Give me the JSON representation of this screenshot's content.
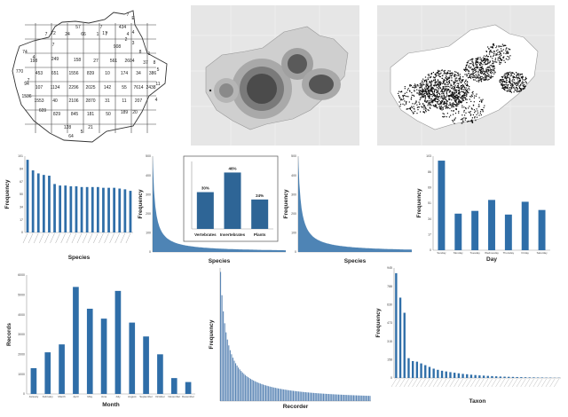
{
  "colors": {
    "bar": "#2f6ea8",
    "inset_bar": "#2e6596",
    "map_line": "#777777",
    "density_dark": "#3c3c3c"
  },
  "grid_map": {
    "cells": [
      "7",
      "E",
      "72",
      "17",
      "4",
      "434",
      "4",
      "74",
      "908",
      "7",
      "24",
      "66",
      "1",
      "7",
      "2",
      "57",
      "7",
      "3",
      "7",
      "8",
      "1",
      "8",
      "5",
      "4",
      "198",
      "249",
      "158",
      "27",
      "561",
      "2604",
      "37",
      "770",
      "453",
      "651",
      "1556",
      "839",
      "10",
      "174",
      "34",
      "386",
      "7",
      "94",
      "107",
      "1134",
      "2296",
      "2025",
      "142",
      "55",
      "7614",
      "2438",
      "11",
      "1536",
      "1553",
      "40",
      "2106",
      "2870",
      "31",
      "11",
      "207",
      "4",
      "609",
      "829",
      "845",
      "181",
      "50",
      "189",
      "20",
      "128",
      "21",
      "64",
      "5"
    ]
  },
  "chart_data": [
    {
      "type": "bar",
      "title": "",
      "xlabel": "Species",
      "ylabel": "Frequency",
      "values": [
        96,
        82,
        78,
        76,
        75,
        64,
        62,
        62,
        61,
        61,
        60,
        60,
        60,
        60,
        59,
        59,
        59,
        58,
        57,
        55
      ]
    },
    {
      "type": "area",
      "title": "",
      "xlabel": "Species",
      "ylabel": "Frequency",
      "series_shape": "long-tail"
    },
    {
      "type": "bar",
      "title": "",
      "xlabel": "",
      "ylabel": "",
      "categories": [
        "Vertebrates",
        "Invertebrates",
        "Plants"
      ],
      "values": [
        30,
        46,
        24
      ],
      "data_labels": [
        "30%",
        "46%",
        "24%"
      ]
    },
    {
      "type": "area",
      "title": "",
      "xlabel": "Species",
      "ylabel": "Frequency",
      "series_shape": "long-tail"
    },
    {
      "type": "bar",
      "title": "",
      "xlabel": "Day",
      "ylabel": "Frequency",
      "categories": [
        "Sunday",
        "Monday",
        "Tuesday",
        "Wednesday",
        "Thursday",
        "Friday",
        "Saturday"
      ],
      "values": [
        98,
        40,
        43,
        55,
        39,
        53,
        44
      ]
    },
    {
      "type": "bar",
      "title": "",
      "xlabel": "Month",
      "ylabel": "Records",
      "categories": [
        "January",
        "February",
        "March",
        "April",
        "May",
        "June",
        "July",
        "August",
        "September",
        "October",
        "November",
        "December"
      ],
      "values": [
        1300,
        2100,
        2500,
        5400,
        4300,
        3800,
        5200,
        3600,
        2900,
        2000,
        800,
        600
      ],
      "ylim": [
        0,
        6000
      ]
    },
    {
      "type": "bar",
      "title": "",
      "xlabel": "Recorder",
      "ylabel": "Frequency",
      "series_shape": "long-tail"
    },
    {
      "type": "bar",
      "title": "",
      "xlabel": "Taxon",
      "ylabel": "Frequency",
      "values": [
        900,
        690,
        560,
        170,
        145,
        140,
        125,
        110,
        95,
        80,
        70,
        62,
        56,
        50,
        45,
        40,
        35,
        32,
        28,
        25,
        22,
        20,
        18,
        16,
        14,
        12,
        11,
        10,
        9,
        8,
        7,
        6,
        5,
        5,
        4,
        4,
        3,
        3,
        2,
        2
      ]
    }
  ]
}
